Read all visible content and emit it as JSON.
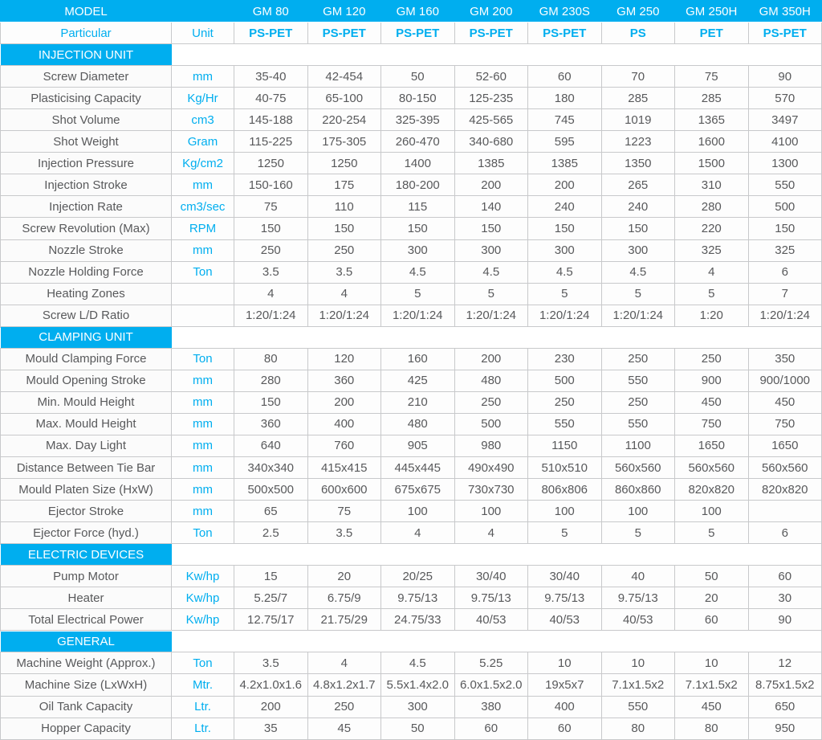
{
  "colors": {
    "accent": "#00AEEF",
    "text": "#58595B",
    "border": "#C8C9CB"
  },
  "table": {
    "header": {
      "model_label": "MODEL",
      "particular_label": "Particular",
      "unit_label": "Unit",
      "models": [
        "GM 80",
        "GM 120",
        "GM 160",
        "GM 200",
        "GM 230S",
        "GM 250",
        "GM 250H",
        "GM 350H"
      ],
      "materials": [
        "PS-PET",
        "PS-PET",
        "PS-PET",
        "PS-PET",
        "PS-PET",
        "PS",
        "PET",
        "PS-PET"
      ]
    },
    "sections": [
      {
        "title": "INJECTION UNIT",
        "rows": [
          {
            "particular": "Screw Diameter",
            "unit": "mm",
            "values": [
              "35-40",
              "42-454",
              "50",
              "52-60",
              "60",
              "70",
              "75",
              "90"
            ]
          },
          {
            "particular": "Plasticising Capacity",
            "unit": "Kg/Hr",
            "values": [
              "40-75",
              "65-100",
              "80-150",
              "125-235",
              "180",
              "285",
              "285",
              "570"
            ]
          },
          {
            "particular": "Shot Volume",
            "unit": "cm3",
            "values": [
              "145-188",
              "220-254",
              "325-395",
              "425-565",
              "745",
              "1019",
              "1365",
              "3497"
            ]
          },
          {
            "particular": "Shot Weight",
            "unit": "Gram",
            "values": [
              "115-225",
              "175-305",
              "260-470",
              "340-680",
              "595",
              "1223",
              "1600",
              "4100"
            ]
          },
          {
            "particular": "Injection Pressure",
            "unit": "Kg/cm2",
            "values": [
              "1250",
              "1250",
              "1400",
              "1385",
              "1385",
              "1350",
              "1500",
              "1300"
            ]
          },
          {
            "particular": "Injection Stroke",
            "unit": "mm",
            "values": [
              "150-160",
              "175",
              "180-200",
              "200",
              "200",
              "265",
              "310",
              "550"
            ]
          },
          {
            "particular": "Injection Rate",
            "unit": "cm3/sec",
            "values": [
              "75",
              "110",
              "115",
              "140",
              "240",
              "240",
              "280",
              "500"
            ]
          },
          {
            "particular": "Screw Revolution (Max)",
            "unit": "RPM",
            "values": [
              "150",
              "150",
              "150",
              "150",
              "150",
              "150",
              "220",
              "150"
            ]
          },
          {
            "particular": "Nozzle Stroke",
            "unit": "mm",
            "values": [
              "250",
              "250",
              "300",
              "300",
              "300",
              "300",
              "325",
              "325"
            ]
          },
          {
            "particular": "Nozzle Holding Force",
            "unit": "Ton",
            "values": [
              "3.5",
              "3.5",
              "4.5",
              "4.5",
              "4.5",
              "4.5",
              "4",
              "6"
            ]
          },
          {
            "particular": "Heating Zones",
            "unit": "",
            "values": [
              "4",
              "4",
              "5",
              "5",
              "5",
              "5",
              "5",
              "7"
            ]
          },
          {
            "particular": "Screw L/D Ratio",
            "unit": "",
            "values": [
              "1:20/1:24",
              "1:20/1:24",
              "1:20/1:24",
              "1:20/1:24",
              "1:20/1:24",
              "1:20/1:24",
              "1:20",
              "1:20/1:24"
            ]
          }
        ]
      },
      {
        "title": "CLAMPING UNIT",
        "rows": [
          {
            "particular": "Mould Clamping Force",
            "unit": "Ton",
            "values": [
              "80",
              "120",
              "160",
              "200",
              "230",
              "250",
              "250",
              "350"
            ]
          },
          {
            "particular": "Mould Opening Stroke",
            "unit": "mm",
            "values": [
              "280",
              "360",
              "425",
              "480",
              "500",
              "550",
              "900",
              "900/1000"
            ]
          },
          {
            "particular": "Min. Mould Height",
            "unit": "mm",
            "values": [
              "150",
              "200",
              "210",
              "250",
              "250",
              "250",
              "450",
              "450"
            ]
          },
          {
            "particular": "Max. Mould Height",
            "unit": "mm",
            "values": [
              "360",
              "400",
              "480",
              "500",
              "550",
              "550",
              "750",
              "750"
            ]
          },
          {
            "particular": "Max. Day Light",
            "unit": "mm",
            "values": [
              "640",
              "760",
              "905",
              "980",
              "1150",
              "1100",
              "1650",
              "1650"
            ]
          },
          {
            "particular": "Distance Between Tie Bar",
            "unit": "mm",
            "values": [
              "340x340",
              "415x415",
              "445x445",
              "490x490",
              "510x510",
              "560x560",
              "560x560",
              "560x560"
            ]
          },
          {
            "particular": "Mould Platen Size (HxW)",
            "unit": "mm",
            "values": [
              "500x500",
              "600x600",
              "675x675",
              "730x730",
              "806x806",
              "860x860",
              "820x820",
              "820x820"
            ]
          },
          {
            "particular": "Ejector Stroke",
            "unit": "mm",
            "values": [
              "65",
              "75",
              "100",
              "100",
              "100",
              "100",
              "100",
              ""
            ]
          },
          {
            "particular": "Ejector Force (hyd.)",
            "unit": "Ton",
            "values": [
              "2.5",
              "3.5",
              "4",
              "4",
              "5",
              "5",
              "5",
              "6"
            ]
          }
        ]
      },
      {
        "title": "ELECTRIC DEVICES",
        "rows": [
          {
            "particular": "Pump Motor",
            "unit": "Kw/hp",
            "values": [
              "15",
              "20",
              "20/25",
              "30/40",
              "30/40",
              "40",
              "50",
              "60"
            ]
          },
          {
            "particular": "Heater",
            "unit": "Kw/hp",
            "values": [
              "5.25/7",
              "6.75/9",
              "9.75/13",
              "9.75/13",
              "9.75/13",
              "9.75/13",
              "20",
              "30"
            ]
          },
          {
            "particular": "Total Electrical Power",
            "unit": "Kw/hp",
            "values": [
              "12.75/17",
              "21.75/29",
              "24.75/33",
              "40/53",
              "40/53",
              "40/53",
              "60",
              "90"
            ]
          }
        ]
      },
      {
        "title": "GENERAL",
        "rows": [
          {
            "particular": "Machine Weight (Approx.)",
            "unit": "Ton",
            "values": [
              "3.5",
              "4",
              "4.5",
              "5.25",
              "10",
              "10",
              "10",
              "12"
            ]
          },
          {
            "particular": "Machine Size (LxWxH)",
            "unit": "Mtr.",
            "values": [
              "4.2x1.0x1.6",
              "4.8x1.2x1.7",
              "5.5x1.4x2.0",
              "6.0x1.5x2.0",
              "19x5x7",
              "7.1x1.5x2",
              "7.1x1.5x2",
              "8.75x1.5x2"
            ]
          },
          {
            "particular": "Oil Tank Capacity",
            "unit": "Ltr.",
            "values": [
              "200",
              "250",
              "300",
              "380",
              "400",
              "550",
              "450",
              "650"
            ]
          },
          {
            "particular": "Hopper Capacity",
            "unit": "Ltr.",
            "values": [
              "35",
              "45",
              "50",
              "60",
              "60",
              "80",
              "80",
              "950"
            ]
          }
        ]
      }
    ]
  }
}
